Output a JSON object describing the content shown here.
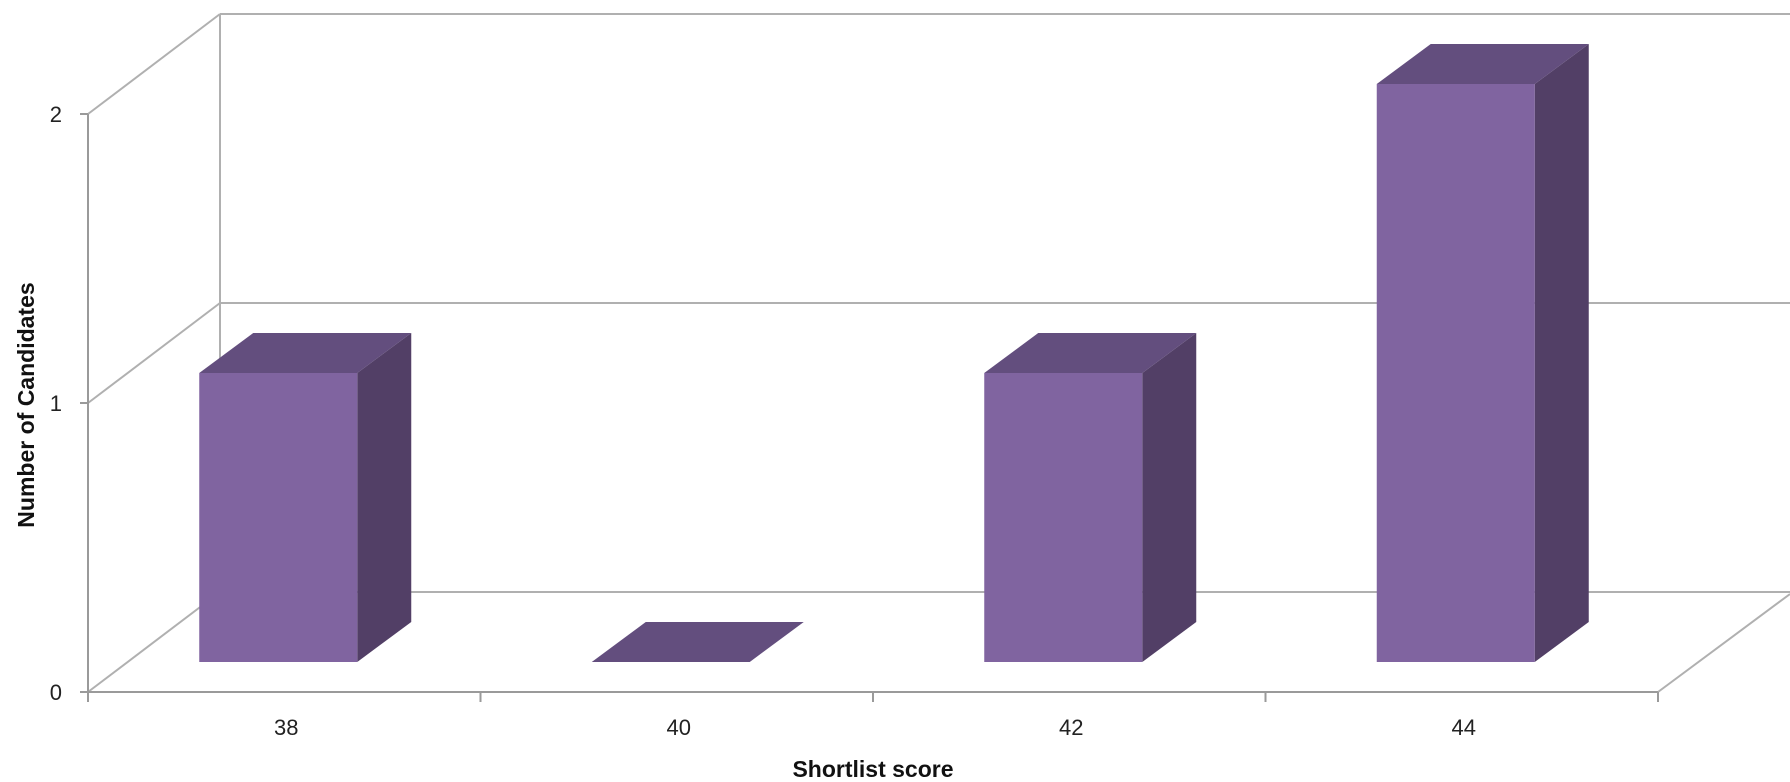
{
  "chart_data": {
    "type": "bar",
    "three_d": true,
    "title": "",
    "xlabel": "Shortlist score",
    "ylabel": "Number of Candidates",
    "categories": [
      "38",
      "40",
      "42",
      "44"
    ],
    "values": [
      1,
      0,
      1,
      2
    ],
    "ylim": [
      0,
      2
    ],
    "yticks": [
      "0",
      "1",
      "2"
    ],
    "grid": true,
    "legend": "none",
    "colors": {
      "bar_front": "#8064a0",
      "bar_top": "#634e7e",
      "bar_side": "#523f66",
      "grid": "#b0b0b0",
      "axis": "#9a9a9a"
    }
  }
}
